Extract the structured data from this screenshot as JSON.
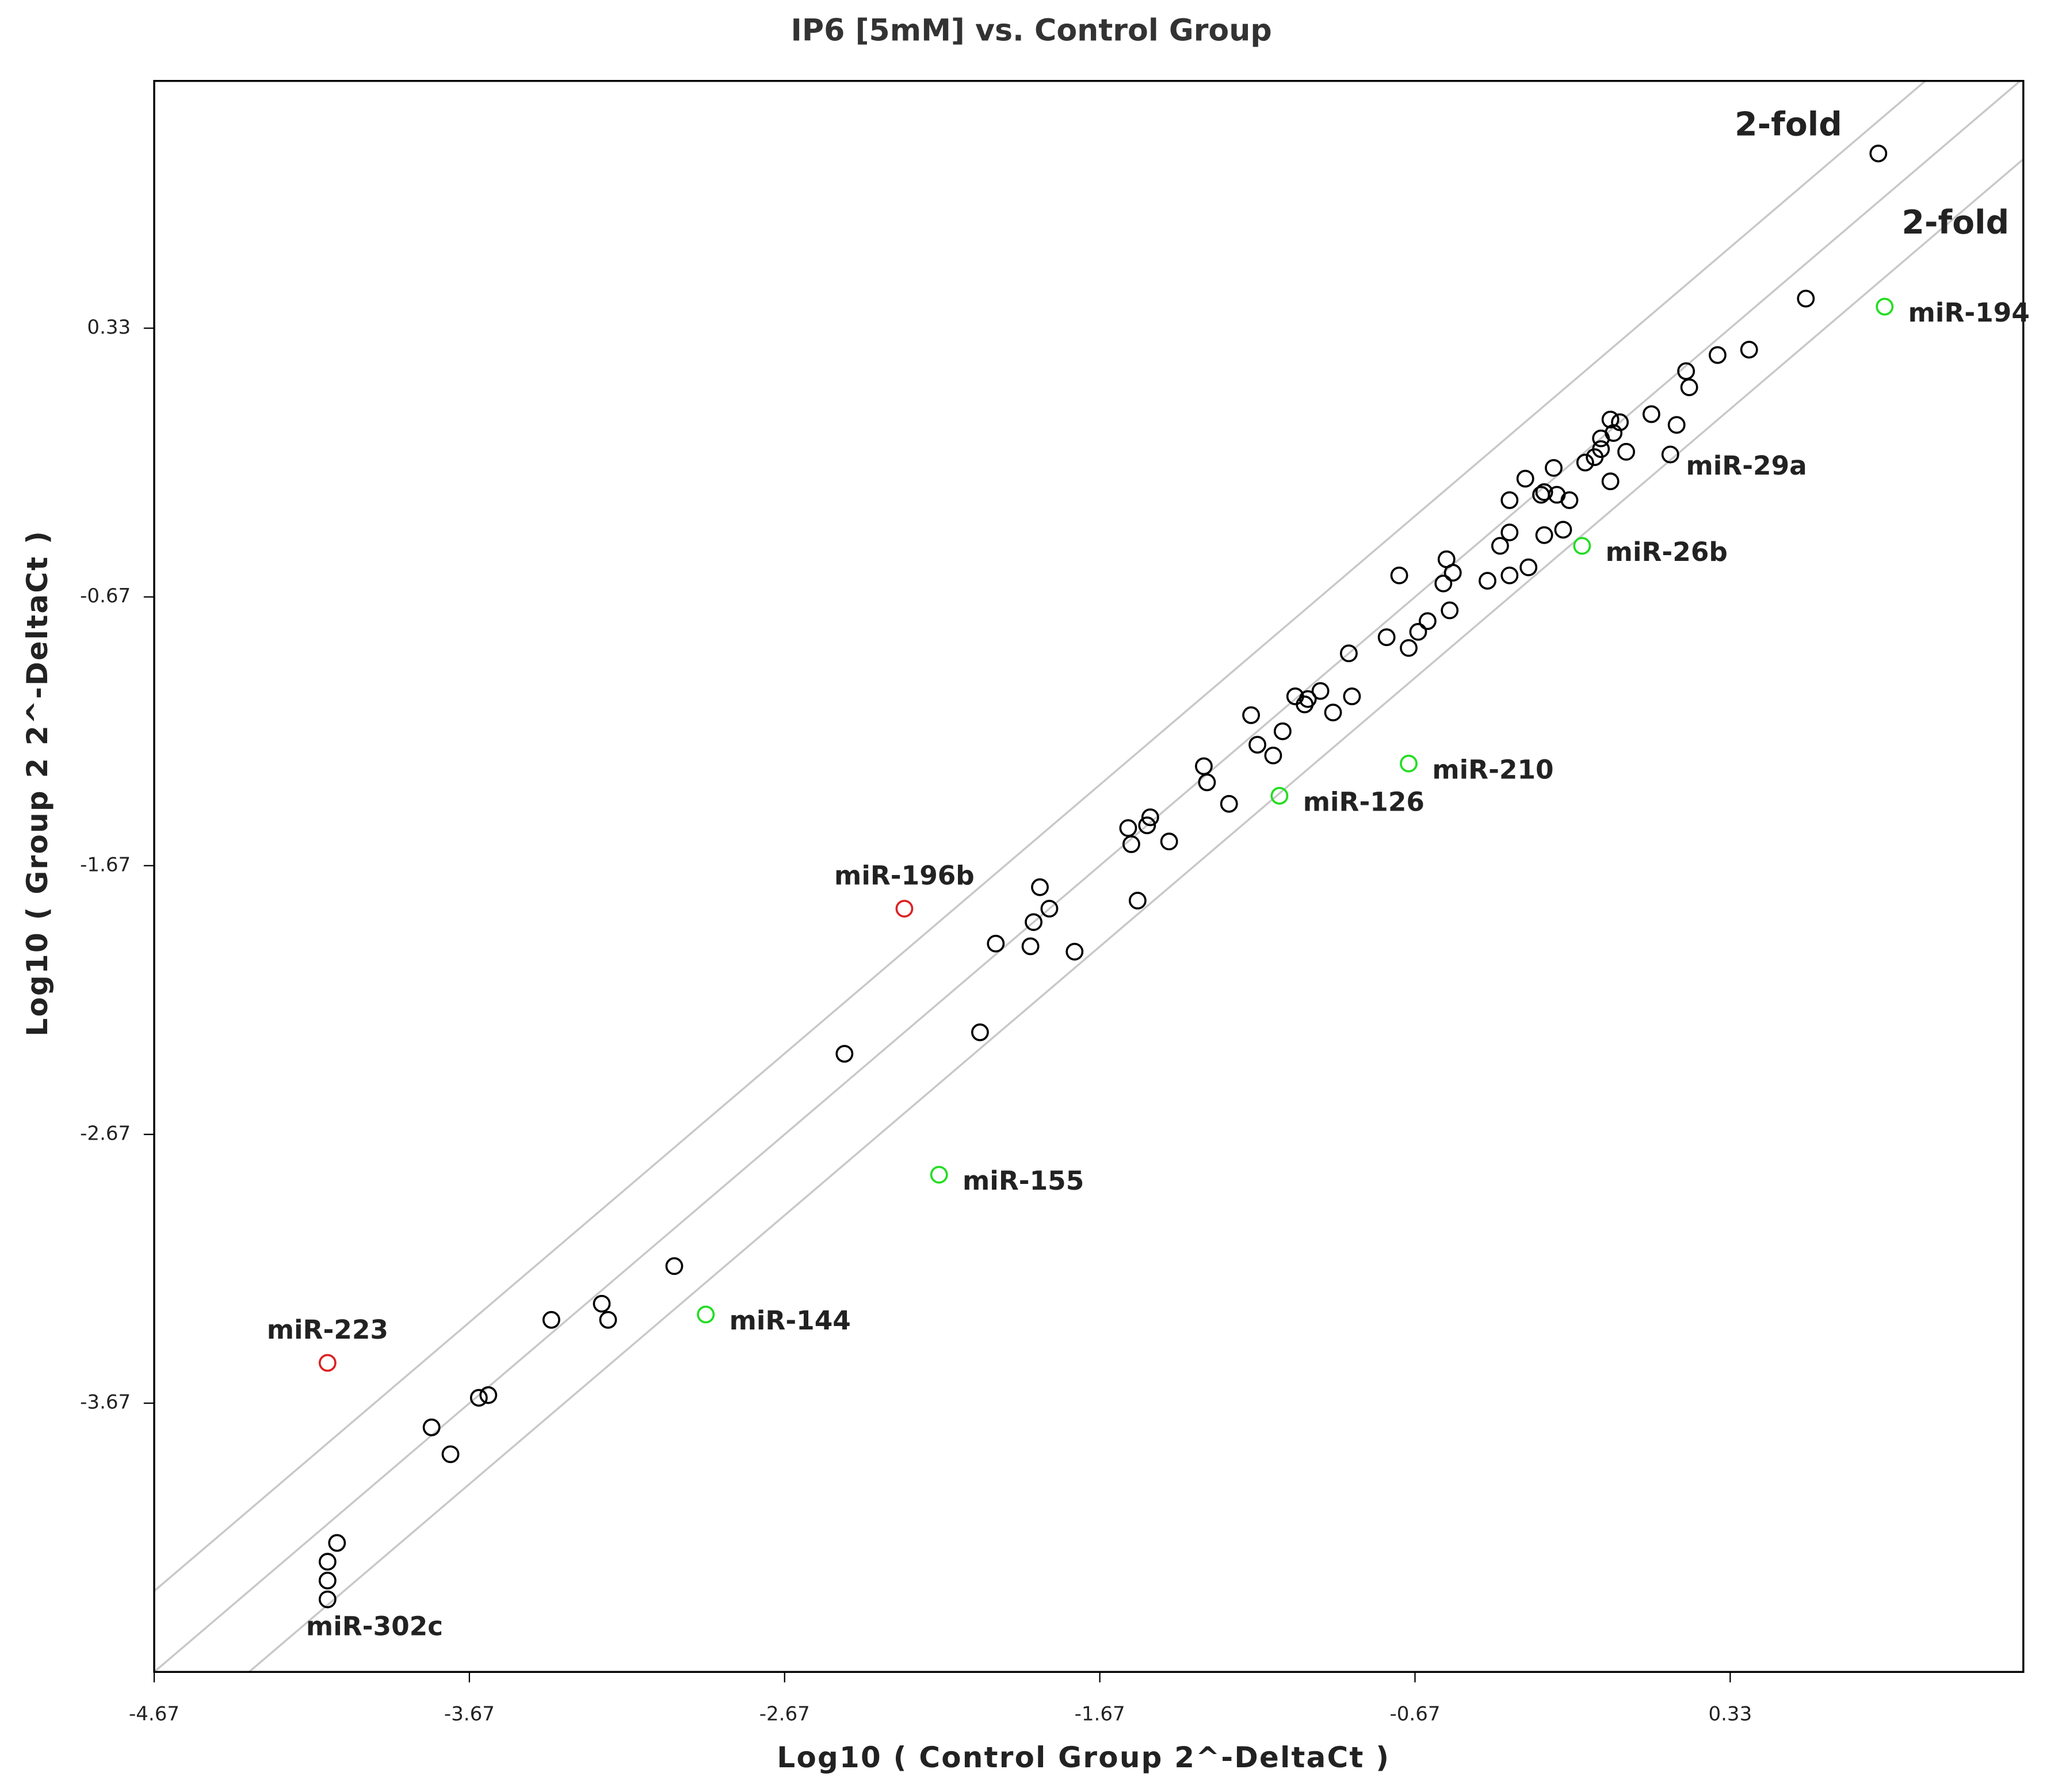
{
  "chart_data": {
    "type": "scatter",
    "title": "IP6 [5mM] vs. Control Group",
    "x_label": "Log10 ( Control Group 2^-DeltaCt )",
    "y_label": "Log10 ( Group 2 2^-DeltaCt )",
    "xlim": [
      -4.67,
      1.26
    ],
    "ylim": [
      -4.67,
      1.25
    ],
    "xticks": [
      -4.67,
      -3.67,
      -2.67,
      -1.67,
      -0.67,
      0.33
    ],
    "yticks": [
      -3.67,
      -2.67,
      -1.67,
      -0.67,
      0.33
    ],
    "fold_lines": [
      {
        "offset": 0.301,
        "label": "2-fold"
      },
      {
        "offset": 0
      },
      {
        "offset": -0.301,
        "label": "2-fold"
      }
    ],
    "series": [
      {
        "color": "#000000",
        "x": [
          0.8,
          0.57,
          0.39,
          0.29,
          0.19,
          0.2,
          0.08,
          0.16,
          -0.05,
          -0.02,
          -0.04,
          -0.08,
          -0.08,
          0.0,
          -0.1,
          -0.13,
          -0.23,
          -0.32,
          -0.05,
          0.14,
          -0.26,
          -0.22,
          -0.18,
          -0.37,
          -0.27,
          -0.37,
          -0.4,
          -0.26,
          -0.2,
          -0.57,
          -0.55,
          -0.58,
          -0.31,
          -0.37,
          -0.44,
          -0.72,
          -0.56,
          -0.63,
          -0.66,
          -0.69,
          -0.76,
          -0.88,
          -0.97,
          -1.05,
          -1.01,
          -1.02,
          -0.87,
          -0.93,
          -1.19,
          -1.09,
          -1.17,
          -1.12,
          -1.34,
          -1.33,
          -1.26,
          -1.51,
          -1.52,
          -1.58,
          -1.57,
          -1.45,
          -1.55,
          -1.86,
          -1.83,
          -1.88,
          -2.0,
          -1.89,
          -1.75,
          -2.05,
          -2.48,
          -3.02,
          -3.25,
          -3.23,
          -3.41,
          -3.61,
          -3.64,
          -3.79,
          -3.73,
          -4.09,
          -4.12,
          -4.12,
          -4.12
        ],
        "y": [
          0.98,
          0.44,
          0.25,
          0.23,
          0.17,
          0.11,
          0.01,
          -0.03,
          -0.01,
          -0.02,
          -0.06,
          -0.08,
          -0.12,
          -0.13,
          -0.15,
          -0.17,
          -0.19,
          -0.23,
          -0.24,
          -0.14,
          -0.28,
          -0.29,
          -0.31,
          -0.31,
          -0.29,
          -0.43,
          -0.48,
          -0.44,
          -0.42,
          -0.53,
          -0.58,
          -0.62,
          -0.56,
          -0.59,
          -0.61,
          -0.59,
          -0.72,
          -0.76,
          -0.8,
          -0.86,
          -0.82,
          -0.88,
          -1.02,
          -1.04,
          -1.05,
          -1.07,
          -1.04,
          -1.1,
          -1.11,
          -1.17,
          -1.22,
          -1.26,
          -1.3,
          -1.36,
          -1.44,
          -1.49,
          -1.52,
          -1.53,
          -1.59,
          -1.58,
          -1.8,
          -1.75,
          -1.83,
          -1.88,
          -1.96,
          -1.97,
          -1.99,
          -2.29,
          -2.37,
          -3.16,
          -3.3,
          -3.36,
          -3.36,
          -3.64,
          -3.65,
          -3.76,
          -3.86,
          -4.19,
          -4.26,
          -4.33,
          -4.4
        ],
        "labels": [
          null,
          null,
          null,
          null,
          null,
          null,
          null,
          null,
          null,
          null,
          null,
          null,
          null,
          null,
          null,
          null,
          null,
          null,
          null,
          "miR-29a",
          null,
          null,
          null,
          null,
          null,
          null,
          null,
          null,
          null,
          null,
          null,
          null,
          null,
          null,
          null,
          null,
          null,
          null,
          null,
          null,
          null,
          null,
          null,
          null,
          null,
          null,
          null,
          null,
          null,
          null,
          null,
          null,
          null,
          null,
          null,
          null,
          null,
          null,
          null,
          null,
          null,
          null,
          null,
          null,
          null,
          null,
          null,
          null,
          null,
          null,
          null,
          null,
          null,
          null,
          null,
          null,
          null,
          null,
          null,
          null,
          "miR-302c"
        ]
      },
      {
        "color": "#22dd22",
        "x": [
          0.82,
          -0.14,
          -0.69,
          -1.1,
          -2.18,
          -2.92
        ],
        "y": [
          0.41,
          -0.48,
          -1.29,
          -1.41,
          -2.82,
          -3.34
        ],
        "labels": [
          "miR-194",
          "miR-26b",
          "miR-210",
          "miR-126",
          "miR-155",
          "miR-144"
        ]
      },
      {
        "color": "#dd2222",
        "x": [
          -2.29,
          -4.12
        ],
        "y": [
          -1.83,
          -3.52
        ],
        "labels": [
          "miR-196b",
          "miR-223"
        ]
      }
    ]
  }
}
